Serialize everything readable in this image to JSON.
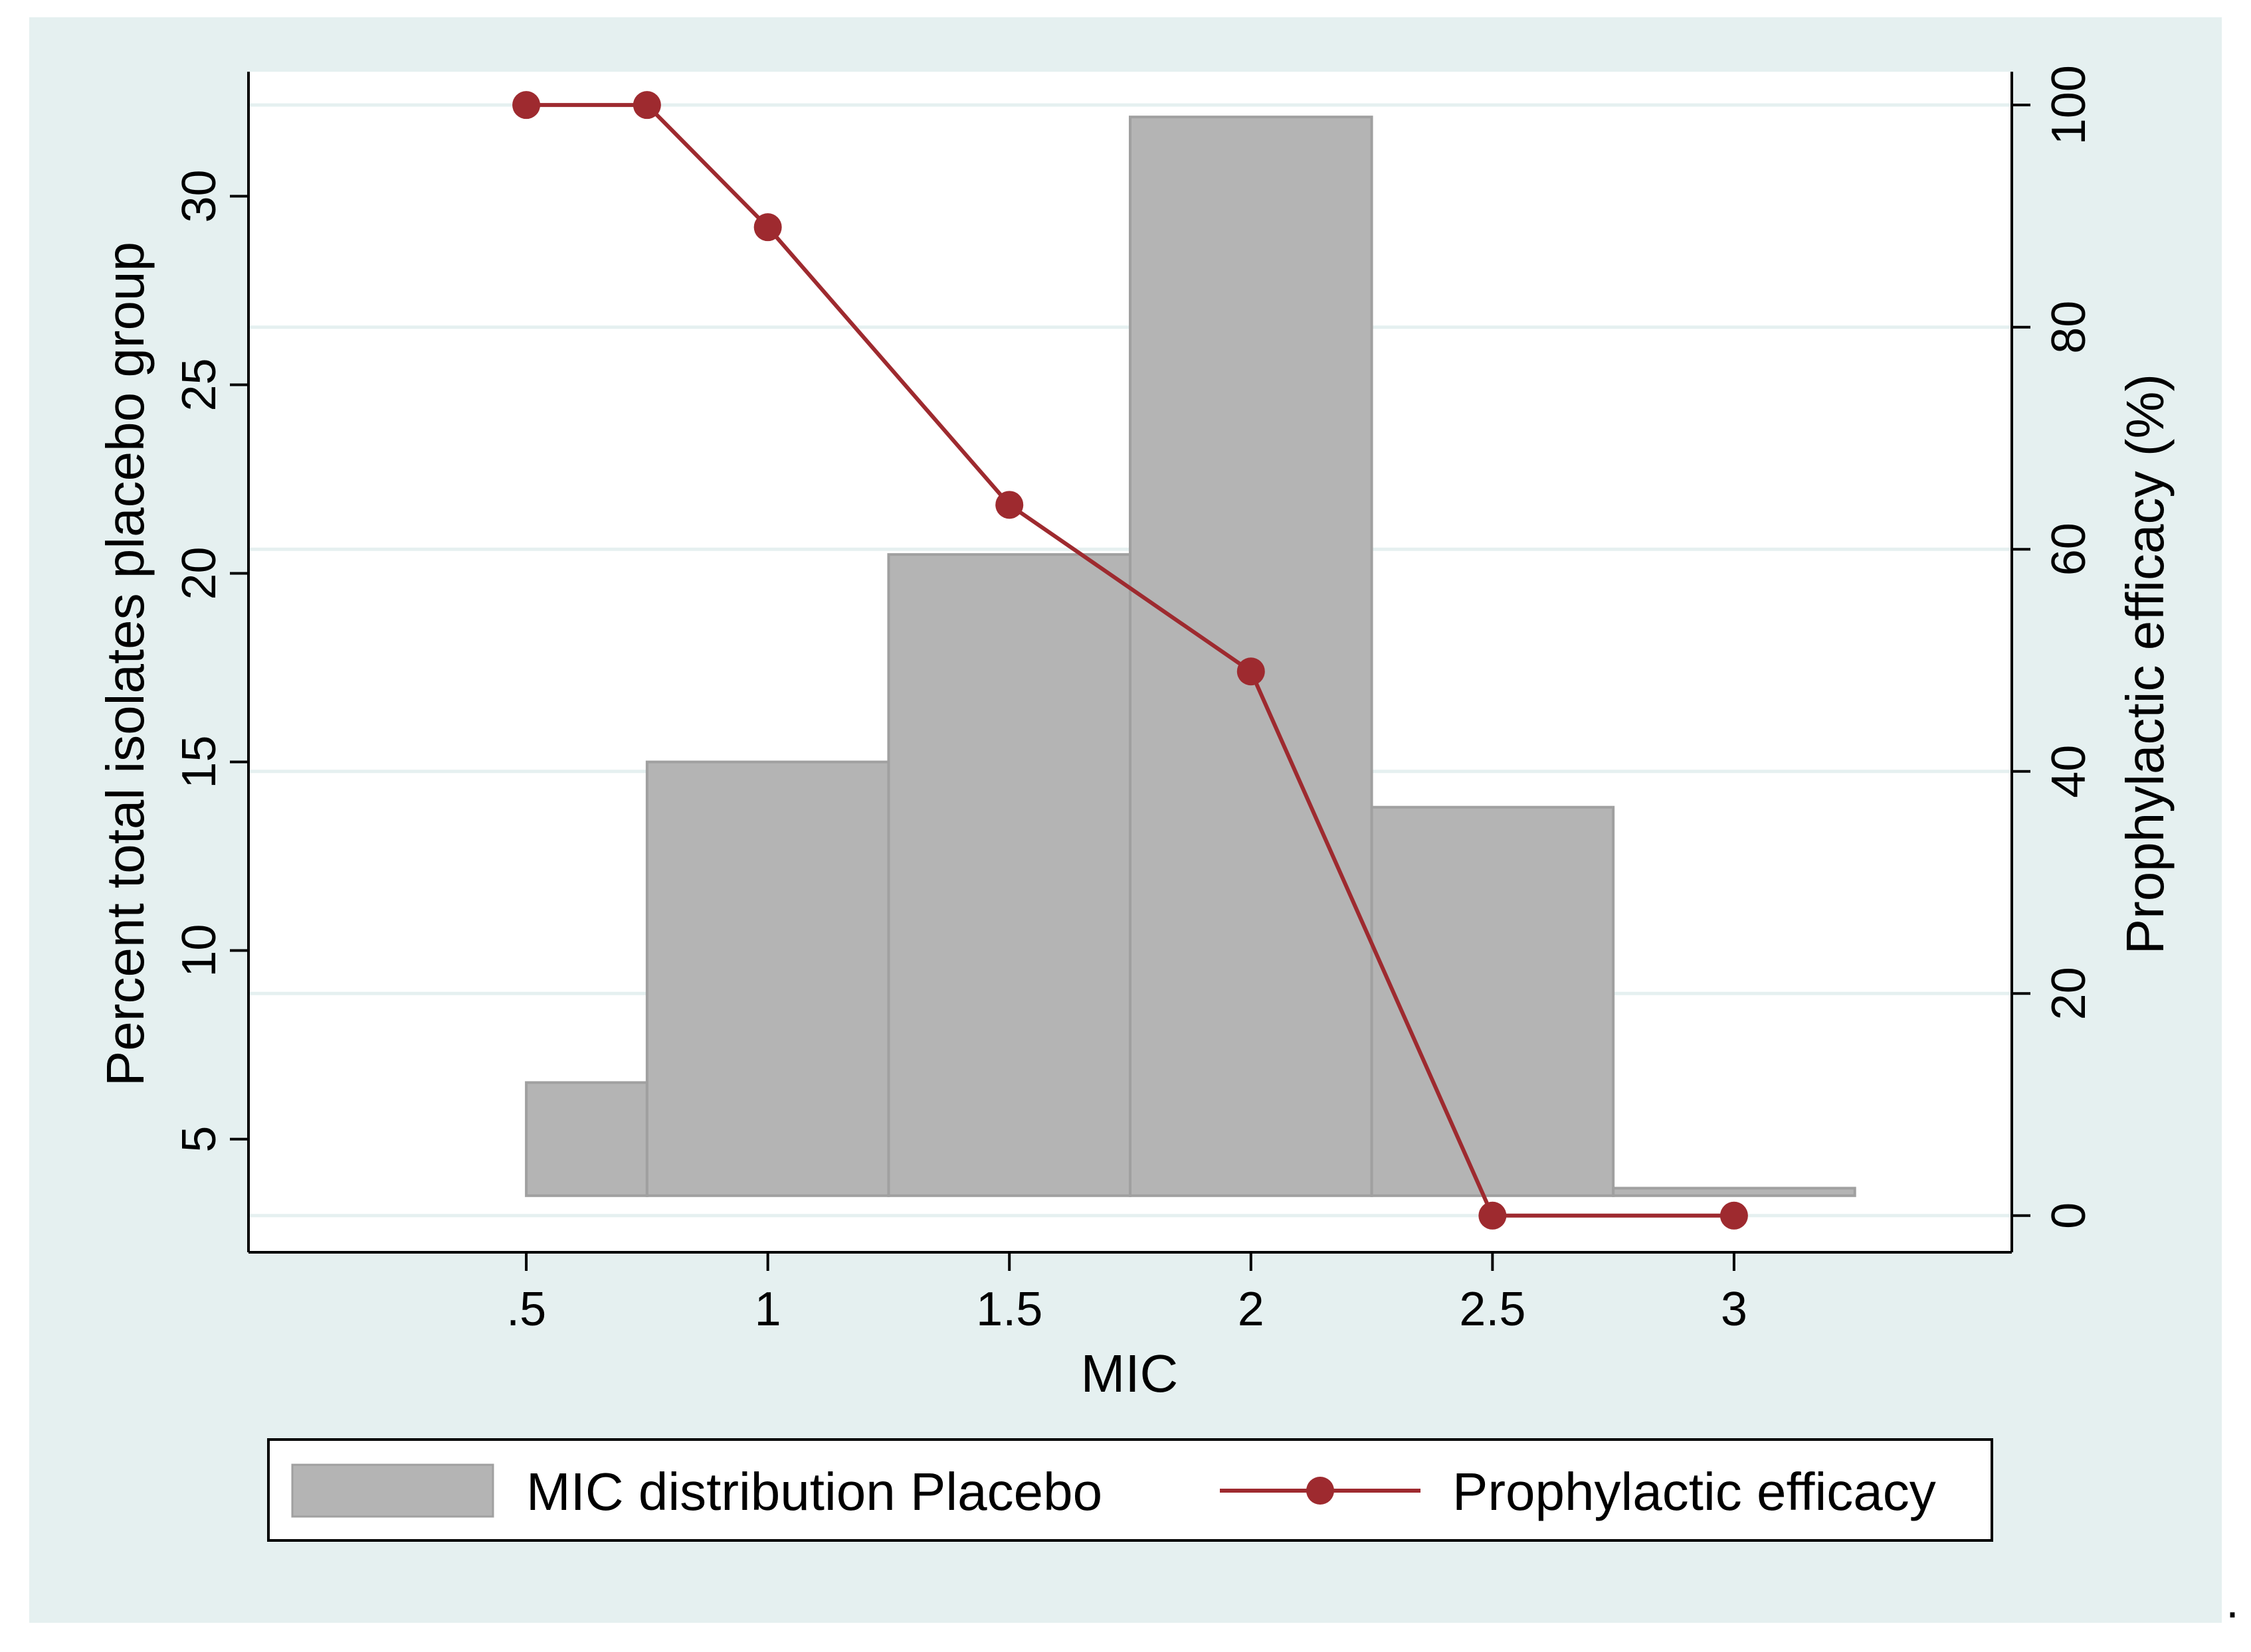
{
  "chart_data": {
    "type": "bar+line",
    "xlabel": "MIC",
    "ylabel_left": "Percent total isolates placebo group",
    "ylabel_right": "Prophylactic efficacy (%)",
    "x_ticks": [
      0.5,
      1,
      1.5,
      2,
      2.5,
      3
    ],
    "x_tick_labels": [
      ".5",
      "1",
      "1.5",
      "2",
      "2.5",
      "3"
    ],
    "xlim": [
      -0.075,
      3.575
    ],
    "y_left_ticks": [
      5,
      10,
      15,
      20,
      25,
      30
    ],
    "y_left_tick_labels": [
      "5",
      "10",
      "15",
      "20",
      "25",
      "30"
    ],
    "ylim_left": [
      2.0,
      33.3
    ],
    "y_right_ticks": [
      0,
      20,
      40,
      60,
      80,
      100
    ],
    "y_right_tick_labels": [
      "0",
      "20",
      "40",
      "60",
      "80",
      "100"
    ],
    "ylim_right": [
      -3.3,
      103
    ],
    "bar_baseline": 3.5,
    "bars": {
      "name": "MIC distribution Placebo",
      "color": "#b4b4b4",
      "edge_color": "#a0a0a0",
      "bins": [
        {
          "x0": 0.5,
          "x1": 0.75,
          "value": 6.5
        },
        {
          "x0": 0.75,
          "x1": 1.25,
          "value": 15.0
        },
        {
          "x0": 1.25,
          "x1": 1.75,
          "value": 20.5
        },
        {
          "x0": 1.75,
          "x1": 2.25,
          "value": 32.1
        },
        {
          "x0": 2.25,
          "x1": 2.75,
          "value": 13.8
        },
        {
          "x0": 2.75,
          "x1": 3.25,
          "value": 3.7
        }
      ]
    },
    "line": {
      "name": "Prophylactic efficacy",
      "color": "#9e2a2f",
      "x": [
        0.5,
        0.75,
        1,
        1.5,
        2,
        2.5,
        3
      ],
      "y": [
        100,
        100,
        89,
        64,
        49,
        0,
        0
      ]
    },
    "legend": {
      "placement": "bottom-center",
      "items": [
        "MIC distribution Placebo",
        "Prophylactic efficacy"
      ]
    },
    "gridlines": "horizontal, right axis",
    "colors": {
      "outer_background": "#e5f0f0",
      "plot_background": "#ffffff",
      "gridline": "#e5f0f0"
    }
  },
  "trailing_mark": "."
}
